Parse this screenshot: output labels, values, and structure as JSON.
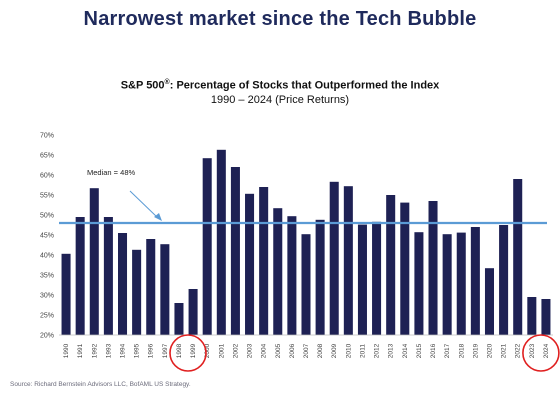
{
  "page": {
    "headline": "Narrowest market since the Tech Bubble",
    "source": "Source: Richard Bernstein Advisors LLC, BofAML US Strategy."
  },
  "chart_data": {
    "type": "bar",
    "title": "S&P 500",
    "title_mark": "®",
    "title_rest": ": Percentage of Stocks that Outperformed the Index",
    "subtitle": "1990 – 2024 (Price Returns)",
    "categories": [
      "1990",
      "1991",
      "1992",
      "1993",
      "1994",
      "1995",
      "1996",
      "1997",
      "1998",
      "1999",
      "2000",
      "2001",
      "2002",
      "2003",
      "2004",
      "2005",
      "2006",
      "2007",
      "2008",
      "2009",
      "2010",
      "2011",
      "2012",
      "2013",
      "2014",
      "2015",
      "2016",
      "2017",
      "2018",
      "2019",
      "2020",
      "2021",
      "2022",
      "2023",
      "2024"
    ],
    "values": [
      40.3,
      49.5,
      56.7,
      49.5,
      45.5,
      41.3,
      44,
      42.7,
      28,
      31.5,
      64.2,
      66.3,
      62,
      55.3,
      57,
      51.7,
      49.7,
      45.2,
      48.8,
      58.3,
      57.2,
      47.6,
      48.3,
      55,
      53.1,
      45.7,
      53.5,
      45.2,
      45.6,
      47,
      36.7,
      47.5,
      59,
      29.5,
      29
    ],
    "ylim": [
      20,
      70
    ],
    "yticks": [
      "20%",
      "25%",
      "30%",
      "35%",
      "40%",
      "45%",
      "50%",
      "55%",
      "60%",
      "65%",
      "70%"
    ],
    "median": {
      "value": 48,
      "label": "Median = 48%"
    },
    "highlighted_years": [
      "1998",
      "1999",
      "2023",
      "2024"
    ],
    "colors": {
      "bar": "#1e2154",
      "median_line": "#5b9bd5",
      "highlight_circle": "#e02020",
      "headline": "#1f2a5c"
    },
    "grid": false,
    "legend": "none"
  }
}
